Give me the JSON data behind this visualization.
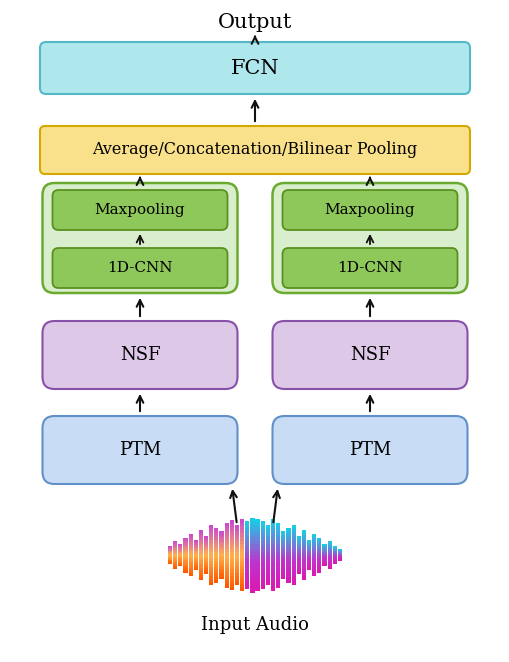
{
  "title": "Output",
  "bottom_label": "Input Audio",
  "fcn_label": "FCN",
  "pool_label": "Average/Concatenation/Bilinear Pooling",
  "maxpool_label": "Maxpooling",
  "cnn_label": "1D-CNN",
  "nsf_label": "NSF",
  "ptm_label": "PTM",
  "colors": {
    "fcn": "#aee8ed",
    "fcn_edge": "#55b8c8",
    "pool": "#f9e08a",
    "pool_edge": "#d4a800",
    "cnn_outer": "#d8eecc",
    "cnn_outer_edge": "#6aaa30",
    "cnn_inner": "#8ec85a",
    "cnn_inner_edge": "#5a9020",
    "nsf": "#ddc8e8",
    "nsf_edge": "#8850a8",
    "ptm": "#c8ddf5",
    "ptm_edge": "#6090c8",
    "arrow": "#111111",
    "background": "#ffffff"
  },
  "figsize": [
    5.1,
    6.62
  ],
  "dpi": 100
}
